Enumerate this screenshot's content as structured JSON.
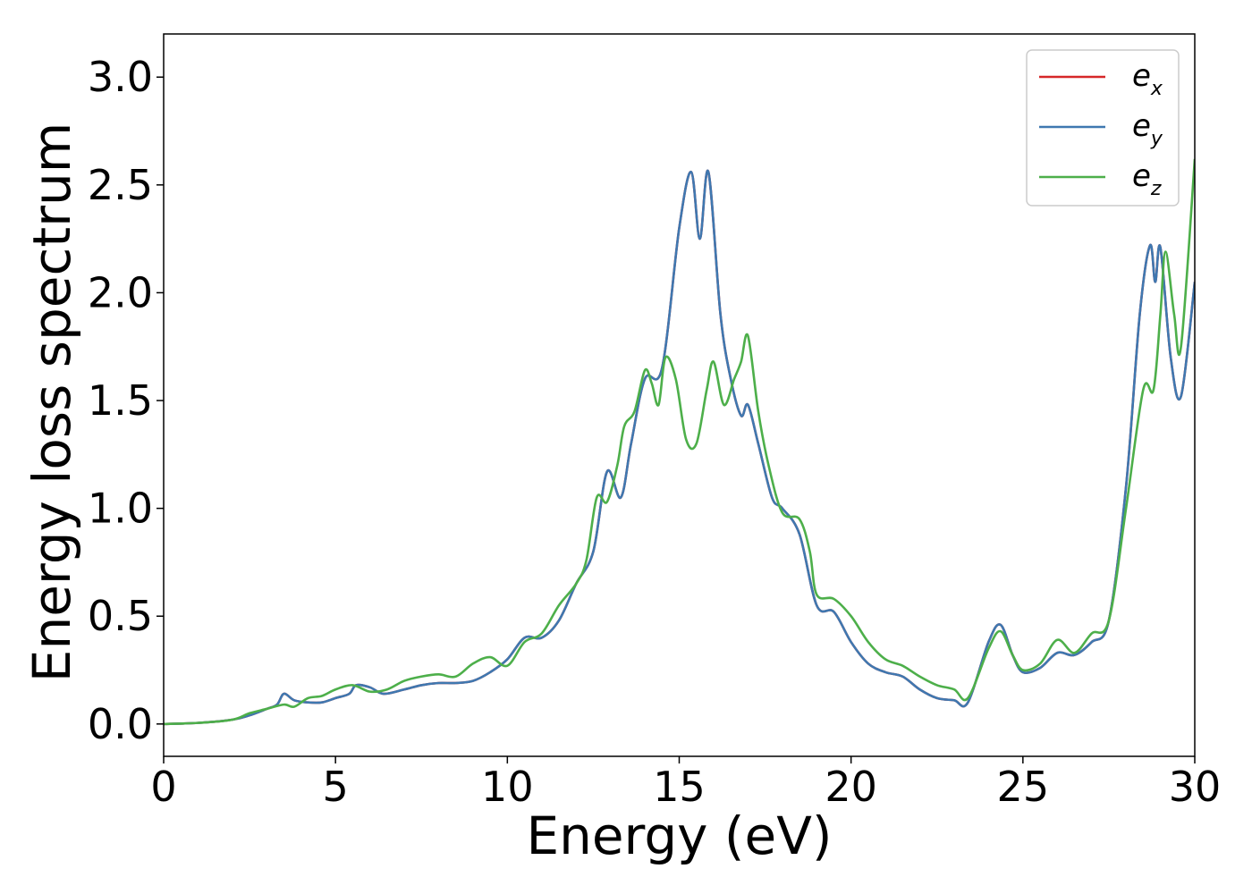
{
  "chart_data": {
    "type": "line",
    "title": "",
    "xlabel": "Energy (eV)",
    "ylabel": "Energy loss spectrum",
    "xlim": [
      0,
      30
    ],
    "ylim": [
      -0.15,
      3.2
    ],
    "xticks": [
      0,
      5,
      10,
      15,
      20,
      25,
      30
    ],
    "yticks": [
      0.0,
      0.5,
      1.0,
      1.5,
      2.0,
      2.5,
      3.0
    ],
    "xtick_labels": [
      "0",
      "5",
      "10",
      "15",
      "20",
      "25",
      "30"
    ],
    "ytick_labels": [
      "0.0",
      "0.5",
      "1.0",
      "1.5",
      "2.0",
      "2.5",
      "3.0"
    ],
    "grid": false,
    "legend_position": "top-right",
    "colors": {
      "ex": "#d62728",
      "ey": "#3f78b0",
      "ez": "#4daf4a"
    },
    "series": [
      {
        "name": "e_x",
        "legend_base": "e",
        "legend_sub": "x",
        "color": "#d62728",
        "points": [
          [
            0,
            0.0
          ],
          [
            1,
            0.005
          ],
          [
            2,
            0.02
          ],
          [
            2.5,
            0.04
          ],
          [
            3,
            0.07
          ],
          [
            3.3,
            0.09
          ],
          [
            3.5,
            0.14
          ],
          [
            3.8,
            0.11
          ],
          [
            4.2,
            0.1
          ],
          [
            4.6,
            0.1
          ],
          [
            5,
            0.12
          ],
          [
            5.4,
            0.14
          ],
          [
            5.6,
            0.18
          ],
          [
            6.0,
            0.17
          ],
          [
            6.4,
            0.14
          ],
          [
            7.0,
            0.16
          ],
          [
            7.5,
            0.18
          ],
          [
            8.0,
            0.19
          ],
          [
            8.5,
            0.19
          ],
          [
            9.0,
            0.2
          ],
          [
            9.5,
            0.24
          ],
          [
            10.0,
            0.3
          ],
          [
            10.5,
            0.4
          ],
          [
            11.0,
            0.4
          ],
          [
            11.5,
            0.48
          ],
          [
            12.0,
            0.65
          ],
          [
            12.5,
            0.8
          ],
          [
            12.9,
            1.17
          ],
          [
            13.3,
            1.05
          ],
          [
            13.6,
            1.3
          ],
          [
            14.0,
            1.6
          ],
          [
            14.5,
            1.65
          ],
          [
            15.0,
            2.3
          ],
          [
            15.35,
            2.56
          ],
          [
            15.6,
            2.25
          ],
          [
            15.85,
            2.56
          ],
          [
            16.2,
            1.9
          ],
          [
            16.5,
            1.6
          ],
          [
            16.8,
            1.43
          ],
          [
            17.0,
            1.48
          ],
          [
            17.3,
            1.3
          ],
          [
            17.7,
            1.05
          ],
          [
            18.0,
            1.0
          ],
          [
            18.5,
            0.88
          ],
          [
            19.0,
            0.55
          ],
          [
            19.5,
            0.52
          ],
          [
            20.0,
            0.38
          ],
          [
            20.5,
            0.28
          ],
          [
            21.0,
            0.24
          ],
          [
            21.5,
            0.22
          ],
          [
            22.0,
            0.16
          ],
          [
            22.5,
            0.12
          ],
          [
            23.0,
            0.11
          ],
          [
            23.4,
            0.1
          ],
          [
            24.0,
            0.38
          ],
          [
            24.35,
            0.46
          ],
          [
            24.7,
            0.32
          ],
          [
            25.0,
            0.24
          ],
          [
            25.5,
            0.26
          ],
          [
            26.0,
            0.33
          ],
          [
            26.5,
            0.32
          ],
          [
            27.0,
            0.38
          ],
          [
            27.5,
            0.48
          ],
          [
            28.0,
            1.1
          ],
          [
            28.4,
            1.9
          ],
          [
            28.7,
            2.22
          ],
          [
            28.85,
            2.05
          ],
          [
            29.0,
            2.21
          ],
          [
            29.3,
            1.7
          ],
          [
            29.6,
            1.52
          ],
          [
            30.0,
            2.05
          ]
        ]
      },
      {
        "name": "e_y",
        "legend_base": "e",
        "legend_sub": "y",
        "color": "#3f78b0",
        "points": [
          [
            0,
            0.0
          ],
          [
            1,
            0.005
          ],
          [
            2,
            0.02
          ],
          [
            2.5,
            0.04
          ],
          [
            3,
            0.07
          ],
          [
            3.3,
            0.09
          ],
          [
            3.5,
            0.14
          ],
          [
            3.8,
            0.11
          ],
          [
            4.2,
            0.1
          ],
          [
            4.6,
            0.1
          ],
          [
            5,
            0.12
          ],
          [
            5.4,
            0.14
          ],
          [
            5.6,
            0.18
          ],
          [
            6.0,
            0.17
          ],
          [
            6.4,
            0.14
          ],
          [
            7.0,
            0.16
          ],
          [
            7.5,
            0.18
          ],
          [
            8.0,
            0.19
          ],
          [
            8.5,
            0.19
          ],
          [
            9.0,
            0.2
          ],
          [
            9.5,
            0.24
          ],
          [
            10.0,
            0.3
          ],
          [
            10.5,
            0.4
          ],
          [
            11.0,
            0.4
          ],
          [
            11.5,
            0.48
          ],
          [
            12.0,
            0.65
          ],
          [
            12.5,
            0.8
          ],
          [
            12.9,
            1.17
          ],
          [
            13.3,
            1.05
          ],
          [
            13.6,
            1.3
          ],
          [
            14.0,
            1.6
          ],
          [
            14.5,
            1.65
          ],
          [
            15.0,
            2.3
          ],
          [
            15.35,
            2.56
          ],
          [
            15.6,
            2.25
          ],
          [
            15.85,
            2.56
          ],
          [
            16.2,
            1.9
          ],
          [
            16.5,
            1.6
          ],
          [
            16.8,
            1.43
          ],
          [
            17.0,
            1.48
          ],
          [
            17.3,
            1.3
          ],
          [
            17.7,
            1.05
          ],
          [
            18.0,
            1.0
          ],
          [
            18.5,
            0.88
          ],
          [
            19.0,
            0.55
          ],
          [
            19.5,
            0.52
          ],
          [
            20.0,
            0.38
          ],
          [
            20.5,
            0.28
          ],
          [
            21.0,
            0.24
          ],
          [
            21.5,
            0.22
          ],
          [
            22.0,
            0.16
          ],
          [
            22.5,
            0.12
          ],
          [
            23.0,
            0.11
          ],
          [
            23.4,
            0.1
          ],
          [
            24.0,
            0.38
          ],
          [
            24.35,
            0.46
          ],
          [
            24.7,
            0.32
          ],
          [
            25.0,
            0.24
          ],
          [
            25.5,
            0.26
          ],
          [
            26.0,
            0.33
          ],
          [
            26.5,
            0.32
          ],
          [
            27.0,
            0.38
          ],
          [
            27.5,
            0.48
          ],
          [
            28.0,
            1.1
          ],
          [
            28.4,
            1.9
          ],
          [
            28.7,
            2.22
          ],
          [
            28.85,
            2.05
          ],
          [
            29.0,
            2.21
          ],
          [
            29.3,
            1.7
          ],
          [
            29.6,
            1.52
          ],
          [
            30.0,
            2.05
          ]
        ]
      },
      {
        "name": "e_z",
        "legend_base": "e",
        "legend_sub": "z",
        "color": "#4daf4a",
        "points": [
          [
            0,
            0.0
          ],
          [
            1,
            0.005
          ],
          [
            2,
            0.02
          ],
          [
            2.5,
            0.05
          ],
          [
            3,
            0.07
          ],
          [
            3.5,
            0.09
          ],
          [
            3.8,
            0.08
          ],
          [
            4.2,
            0.12
          ],
          [
            4.6,
            0.13
          ],
          [
            5.0,
            0.16
          ],
          [
            5.5,
            0.18
          ],
          [
            6.0,
            0.15
          ],
          [
            6.5,
            0.16
          ],
          [
            7.0,
            0.2
          ],
          [
            7.5,
            0.22
          ],
          [
            8.0,
            0.23
          ],
          [
            8.5,
            0.22
          ],
          [
            9.0,
            0.28
          ],
          [
            9.5,
            0.31
          ],
          [
            10.0,
            0.27
          ],
          [
            10.5,
            0.38
          ],
          [
            11.0,
            0.42
          ],
          [
            11.5,
            0.55
          ],
          [
            12.0,
            0.65
          ],
          [
            12.3,
            0.76
          ],
          [
            12.6,
            1.05
          ],
          [
            12.9,
            1.03
          ],
          [
            13.2,
            1.2
          ],
          [
            13.4,
            1.38
          ],
          [
            13.7,
            1.45
          ],
          [
            14.0,
            1.64
          ],
          [
            14.2,
            1.58
          ],
          [
            14.4,
            1.48
          ],
          [
            14.6,
            1.7
          ],
          [
            14.9,
            1.6
          ],
          [
            15.2,
            1.32
          ],
          [
            15.5,
            1.3
          ],
          [
            15.8,
            1.55
          ],
          [
            16.0,
            1.68
          ],
          [
            16.3,
            1.48
          ],
          [
            16.6,
            1.6
          ],
          [
            16.8,
            1.68
          ],
          [
            17.0,
            1.8
          ],
          [
            17.3,
            1.45
          ],
          [
            17.6,
            1.2
          ],
          [
            18.0,
            0.98
          ],
          [
            18.5,
            0.95
          ],
          [
            18.8,
            0.8
          ],
          [
            19.0,
            0.6
          ],
          [
            19.5,
            0.58
          ],
          [
            20.0,
            0.5
          ],
          [
            20.5,
            0.38
          ],
          [
            21.0,
            0.3
          ],
          [
            21.5,
            0.27
          ],
          [
            22.0,
            0.22
          ],
          [
            22.5,
            0.18
          ],
          [
            23.0,
            0.16
          ],
          [
            23.4,
            0.12
          ],
          [
            24.0,
            0.35
          ],
          [
            24.35,
            0.43
          ],
          [
            24.7,
            0.32
          ],
          [
            25.0,
            0.25
          ],
          [
            25.5,
            0.28
          ],
          [
            26.0,
            0.39
          ],
          [
            26.5,
            0.33
          ],
          [
            27.0,
            0.42
          ],
          [
            27.5,
            0.48
          ],
          [
            28.0,
            1.0
          ],
          [
            28.5,
            1.55
          ],
          [
            28.8,
            1.55
          ],
          [
            29.0,
            1.9
          ],
          [
            29.15,
            2.19
          ],
          [
            29.4,
            1.9
          ],
          [
            29.6,
            1.75
          ],
          [
            30.0,
            2.62
          ]
        ]
      }
    ]
  }
}
